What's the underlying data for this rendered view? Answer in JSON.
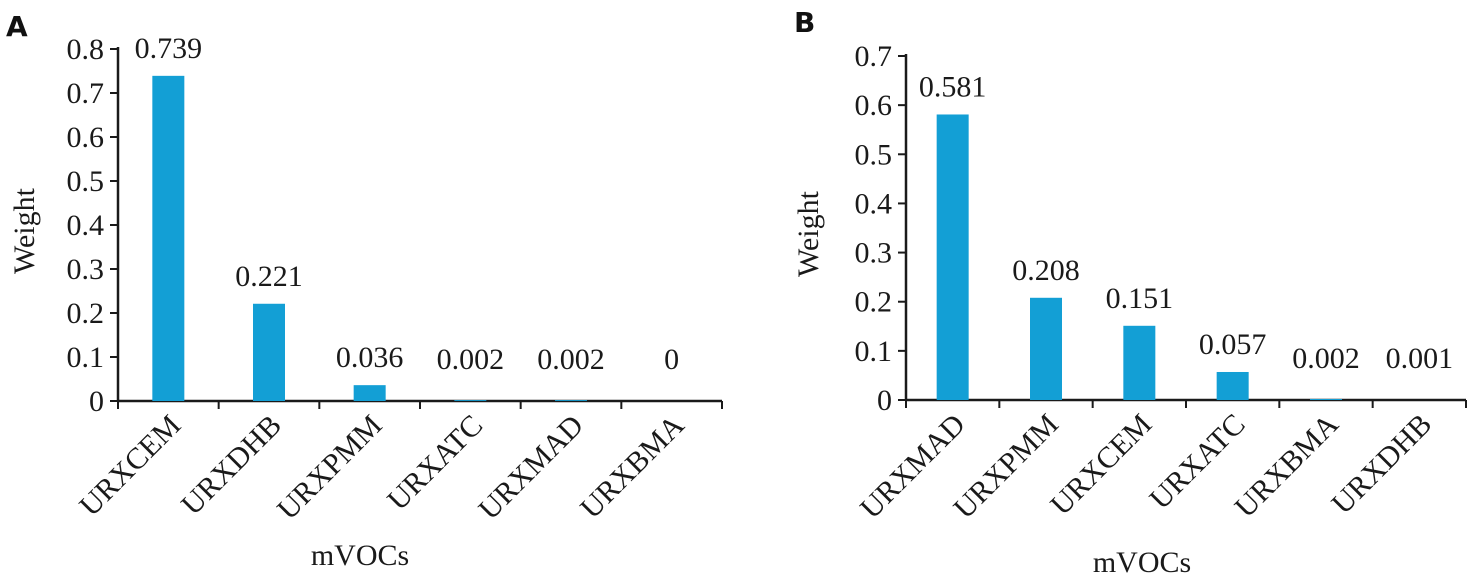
{
  "colors": {
    "bar": "#139fd5",
    "axis": "#1a1a1a"
  },
  "chart_data": [
    {
      "type": "bar",
      "panel_label": "A",
      "categories": [
        "URXCEM",
        "URXDHB",
        "URXPMM",
        "URXATC",
        "URXMAD",
        "URXBMA"
      ],
      "values": [
        0.739,
        0.221,
        0.036,
        0.002,
        0.002,
        0
      ],
      "value_labels": [
        "0.739",
        "0.221",
        "0.036",
        "0.002",
        "0.002",
        "0"
      ],
      "xlabel": "mVOCs",
      "ylabel": "Weight",
      "ylim": [
        0,
        0.8
      ],
      "yticks": [
        0,
        0.1,
        0.2,
        0.3,
        0.4,
        0.5,
        0.6,
        0.7,
        0.8
      ],
      "ytick_labels": [
        "0",
        "0.1",
        "0.2",
        "0.3",
        "0.4",
        "0.5",
        "0.6",
        "0.7",
        "0.8"
      ],
      "grid": false,
      "legend": "none"
    },
    {
      "type": "bar",
      "panel_label": "B",
      "categories": [
        "URXMAD",
        "URXPMM",
        "URXCEM",
        "URXATC",
        "URXBMA",
        "URXDHB"
      ],
      "values": [
        0.581,
        0.208,
        0.151,
        0.057,
        0.002,
        0.001
      ],
      "value_labels": [
        "0.581",
        "0.208",
        "0.151",
        "0.057",
        "0.002",
        "0.001"
      ],
      "xlabel": "mVOCs",
      "ylabel": "Weight",
      "ylim": [
        0,
        0.7
      ],
      "yticks": [
        0,
        0.1,
        0.2,
        0.3,
        0.4,
        0.5,
        0.6,
        0.7
      ],
      "ytick_labels": [
        "0",
        "0.1",
        "0.2",
        "0.3",
        "0.4",
        "0.5",
        "0.6",
        "0.7"
      ],
      "grid": false,
      "legend": "none"
    }
  ]
}
